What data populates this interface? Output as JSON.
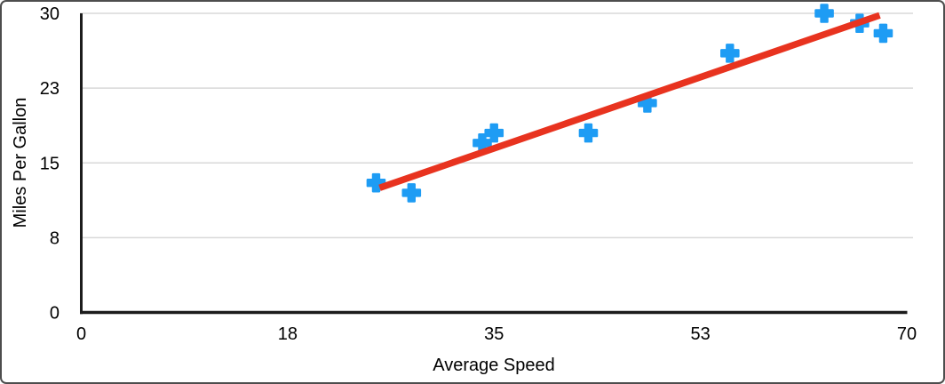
{
  "figure": {
    "background": "#ffffff",
    "border_color": "#4d4d4d"
  },
  "chart_data": {
    "type": "scatter",
    "xlabel": "Average Speed",
    "ylabel": "Miles Per Gallon",
    "xlim": [
      0,
      70
    ],
    "ylim": [
      0,
      30
    ],
    "grid": "horizontal-only",
    "legend": "none",
    "axis_color": "#1c1c1c",
    "gridline_color": "#d8d8d8",
    "text_color": "#000000",
    "x_ticks": [
      {
        "value": 0,
        "label": "0"
      },
      {
        "value": 17.5,
        "label": "18"
      },
      {
        "value": 35,
        "label": "35"
      },
      {
        "value": 52.5,
        "label": "53"
      },
      {
        "value": 70,
        "label": "70"
      }
    ],
    "y_ticks": [
      {
        "value": 0,
        "label": "0"
      },
      {
        "value": 7.5,
        "label": "8"
      },
      {
        "value": 15,
        "label": "15"
      },
      {
        "value": 22.5,
        "label": "23"
      },
      {
        "value": 30,
        "label": "30"
      }
    ],
    "series": [
      {
        "name": "Miles Per Gallon",
        "marker": "plus",
        "color": "#1e9cf4",
        "points": [
          [
            25,
            13
          ],
          [
            28,
            12
          ],
          [
            34,
            17
          ],
          [
            35,
            18
          ],
          [
            43,
            18
          ],
          [
            48,
            21
          ],
          [
            55,
            26
          ],
          [
            63,
            30
          ],
          [
            66,
            29
          ],
          [
            68,
            28
          ]
        ]
      }
    ],
    "trendline": {
      "type": "linear",
      "color": "#e8331f",
      "x_start": 25.3,
      "y_start": 12.5,
      "x_end": 67.7,
      "y_end": 29.8
    }
  }
}
